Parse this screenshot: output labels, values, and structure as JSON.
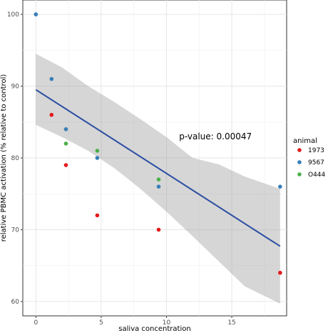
{
  "chart_data": {
    "type": "scatter",
    "xlabel": "saliva concentration",
    "ylabel": "relative PBMC activation (% relative to control)",
    "xlim": [
      -1,
      19.2
    ],
    "ylim": [
      58,
      102
    ],
    "x_ticks": [
      0,
      5,
      10,
      15
    ],
    "y_ticks": [
      60,
      70,
      80,
      90,
      100
    ],
    "grid": true,
    "legend_title": "animal",
    "legend_position": "right",
    "annotation": "p-value: 0.00047",
    "annotation_at": {
      "x": 12.5,
      "y": 83
    },
    "series": [
      {
        "name": "1973",
        "color": "#e41a1c",
        "points": [
          [
            1.2,
            86
          ],
          [
            2.3,
            79
          ],
          [
            4.7,
            72
          ],
          [
            9.4,
            70
          ],
          [
            18.7,
            64
          ]
        ]
      },
      {
        "name": "9567",
        "color": "#377eb8",
        "points": [
          [
            0,
            100
          ],
          [
            1.2,
            91
          ],
          [
            2.3,
            84
          ],
          [
            4.7,
            80
          ],
          [
            9.4,
            76
          ],
          [
            18.7,
            76
          ]
        ]
      },
      {
        "name": "O444",
        "color": "#4daf4a",
        "points": [
          [
            2.3,
            82
          ],
          [
            4.7,
            81
          ],
          [
            9.4,
            77
          ]
        ]
      }
    ],
    "regression": {
      "x": [
        0,
        18.7
      ],
      "y": [
        89.5,
        67.7
      ],
      "color": "#2b4ea2",
      "band": {
        "x": [
          0,
          2,
          4,
          6,
          8,
          10,
          12,
          14,
          16,
          18.7
        ],
        "lower": [
          84.6,
          82.9,
          81.0,
          78.6,
          75.7,
          72.5,
          69.1,
          65.6,
          62.1,
          59.7
        ],
        "upper": [
          94.5,
          92.6,
          90.0,
          87.8,
          85.4,
          82.9,
          80.0,
          79.1,
          77.4,
          75.7
        ]
      }
    }
  }
}
